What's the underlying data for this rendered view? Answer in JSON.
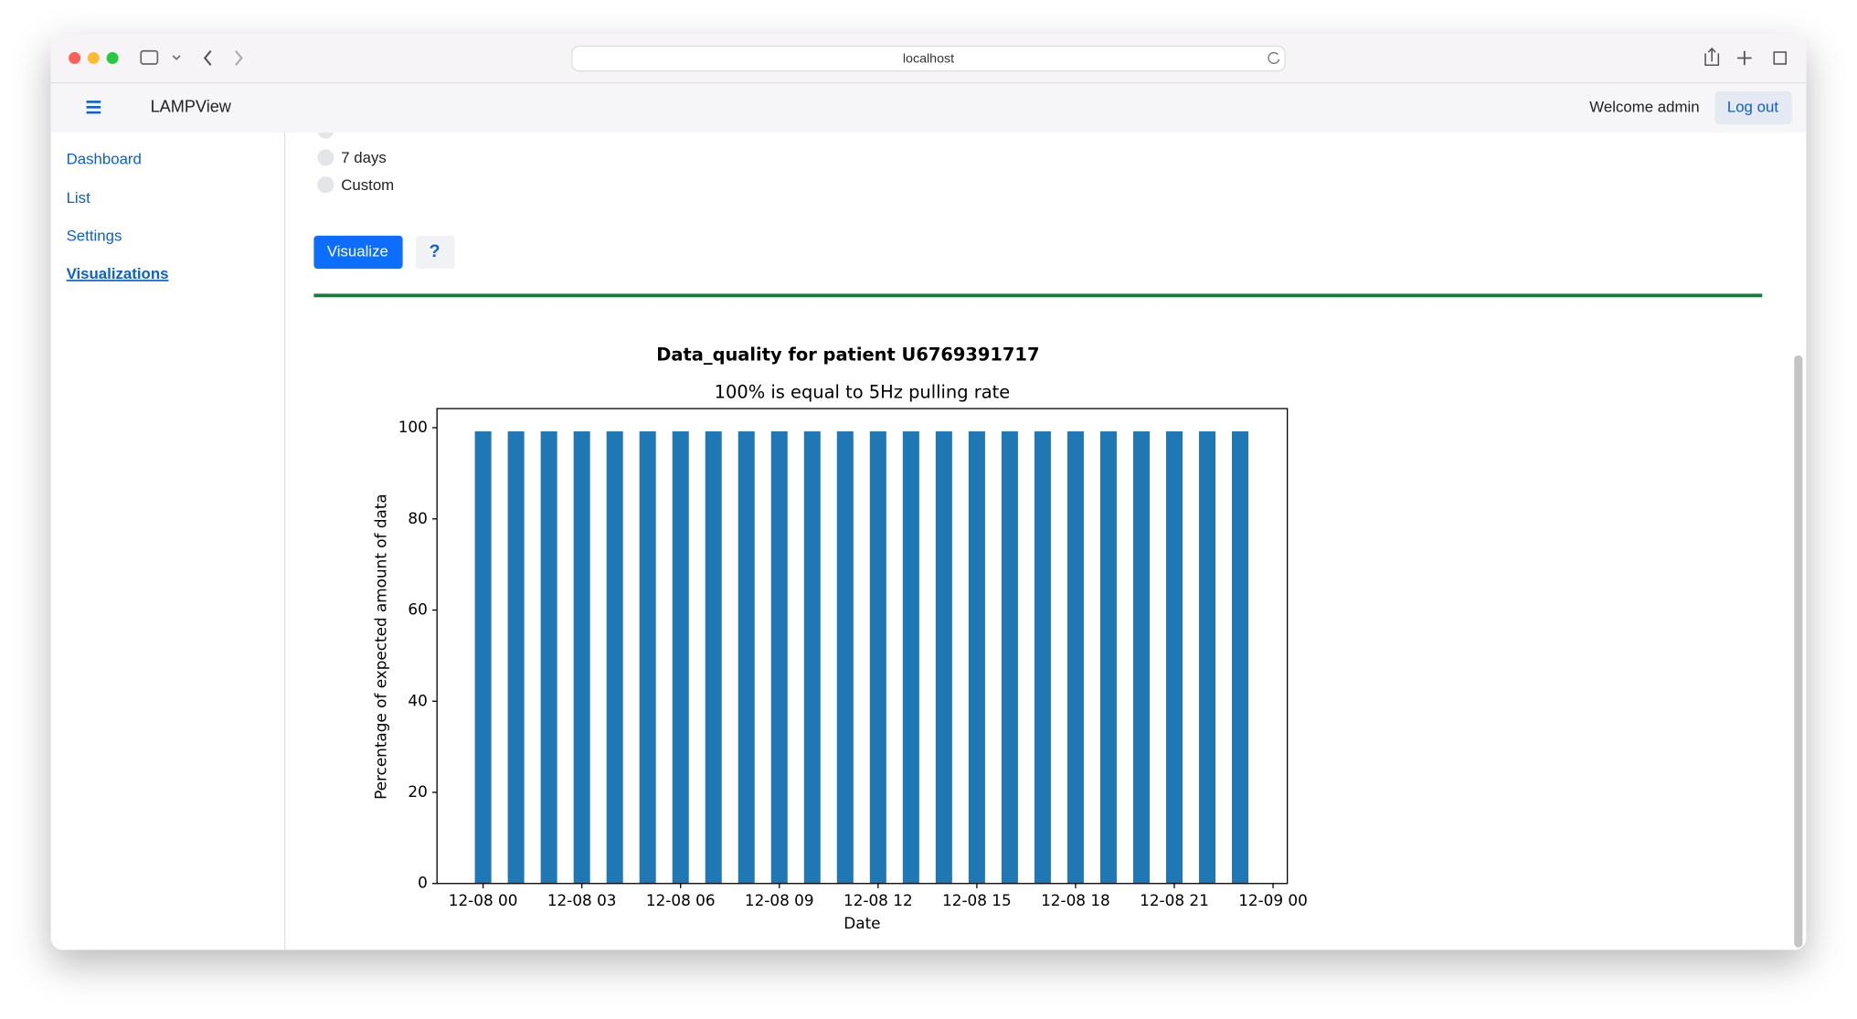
{
  "browser": {
    "url": "localhost"
  },
  "app": {
    "name": "LAMPView",
    "welcome": "Welcome admin",
    "logout": "Log out"
  },
  "sidebar": [
    "Dashboard",
    "List",
    "Settings",
    "Visualizations"
  ],
  "options": [
    "7 days",
    "Custom"
  ],
  "buttons": {
    "visualize": "Visualize",
    "help": "?"
  },
  "chart_data": {
    "type": "bar",
    "title": "Data_quality for patient U6769391717",
    "subtitle": "100% is equal to 5Hz pulling rate",
    "x_label": "Date",
    "y_label": "Percentage of expected amount of data",
    "x": [
      "12-08 00",
      "12-08 01",
      "12-08 02",
      "12-08 03",
      "12-08 04",
      "12-08 05",
      "12-08 06",
      "12-08 07",
      "12-08 08",
      "12-08 09",
      "12-08 10",
      "12-08 11",
      "12-08 12",
      "12-08 13",
      "12-08 14",
      "12-08 15",
      "12-08 16",
      "12-08 17",
      "12-08 18",
      "12-08 19",
      "12-08 20",
      "12-08 21",
      "12-08 22",
      "12-08 23"
    ],
    "values": [
      99.2,
      99.2,
      99.2,
      99.2,
      99.2,
      99.2,
      99.2,
      99.2,
      99.2,
      99.2,
      99.2,
      99.2,
      99.2,
      99.2,
      99.2,
      99.2,
      99.2,
      99.2,
      99.2,
      99.2,
      99.2,
      99.2,
      99.2,
      99.2
    ],
    "color": "#1f77b4",
    "xlim": [
      "12-07 22:36",
      "12-09 00:26"
    ],
    "xticks": [
      "12-08 00",
      "12-08 03",
      "12-08 06",
      "12-08 09",
      "12-08 12",
      "12-08 15",
      "12-08 18",
      "12-08 21",
      "12-09 00"
    ],
    "ylim": [
      0,
      104.2
    ],
    "yticks": [
      0,
      20,
      40,
      60,
      80,
      100
    ]
  }
}
